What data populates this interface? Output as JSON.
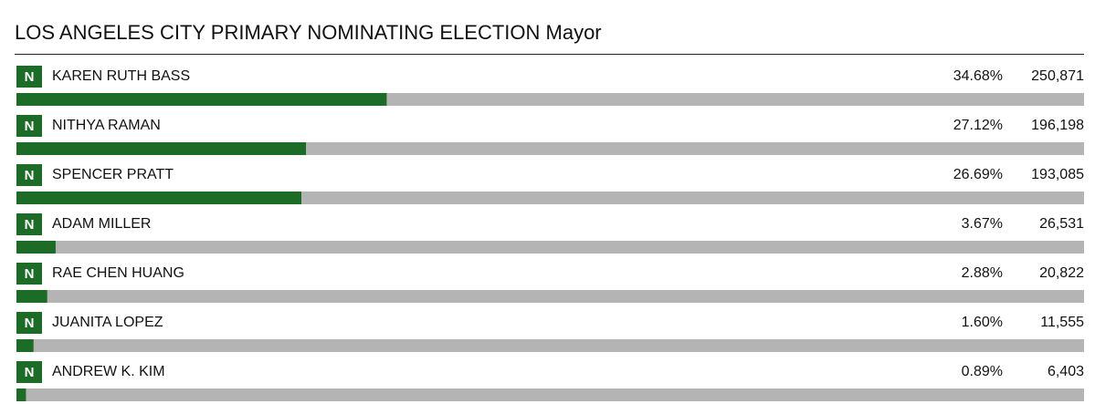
{
  "chart_data": {
    "type": "hbar",
    "title": "LOS ANGELES CITY PRIMARY NOMINATING ELECTION Mayor",
    "categories": [
      "KAREN RUTH BASS",
      "NITHYA RAMAN",
      "SPENCER PRATT",
      "ADAM MILLER",
      "RAE CHEN HUANG",
      "JUANITA LOPEZ",
      "ANDREW K. KIM"
    ],
    "badges": [
      "N",
      "N",
      "N",
      "N",
      "N",
      "N",
      "N"
    ],
    "values": [
      34.68,
      27.12,
      26.69,
      3.67,
      2.88,
      1.6,
      0.89
    ],
    "value_labels": [
      "34.68%",
      "27.12%",
      "26.69%",
      "3.67%",
      "2.88%",
      "1.60%",
      "0.89%"
    ],
    "votes": [
      "250,871",
      "196,198",
      "193,085",
      "26,531",
      "20,822",
      "11,555",
      "6,403"
    ],
    "xlim": [
      0,
      100
    ],
    "color": "#1c6b27",
    "track_color": "#b4b4b4"
  }
}
